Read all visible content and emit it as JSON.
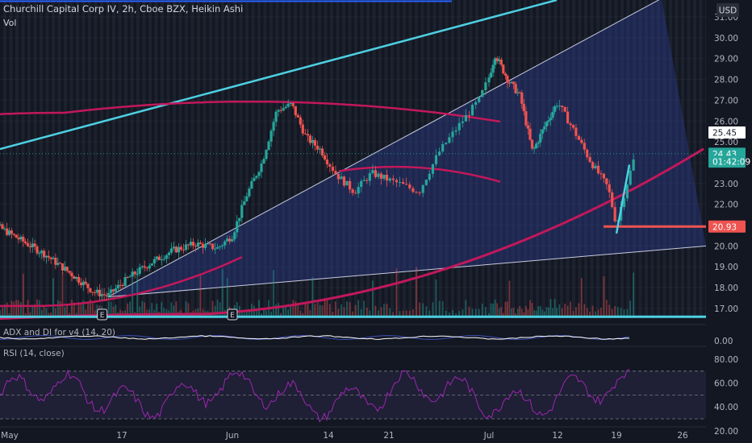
{
  "header": {
    "symbol_line": "Churchill Capital Corp IV, 2h, Cboe BZX, Heikin Ashi",
    "vol_label": "Vol",
    "currency": "USD"
  },
  "price_axis": {
    "ticks": [
      "31.00",
      "30.00",
      "29.00",
      "28.00",
      "27.00",
      "26.00",
      "25.00",
      "24.00",
      "23.00",
      "22.00",
      "21.00",
      "20.00",
      "19.00",
      "18.00",
      "17.00"
    ],
    "badges": [
      {
        "text": "25.45",
        "value": 25.45,
        "style": "white"
      },
      {
        "text": "24.43",
        "value": 24.43,
        "style": "teal"
      },
      {
        "text": "01:42:09",
        "value": 24.05,
        "style": "teal"
      },
      {
        "text": "20.93",
        "value": 20.93,
        "style": "red"
      }
    ]
  },
  "time_axis": {
    "labels": [
      "May",
      "17",
      "Jun",
      "14",
      "21",
      "Jul",
      "12",
      "19",
      "26"
    ]
  },
  "earnings_markers": [
    "E",
    "E"
  ],
  "colors": {
    "background": "#131722",
    "bull": "#26a69a",
    "bear": "#ef5350",
    "teal_line": "#4dd0e1",
    "magenta_line": "#c2185b",
    "channel_fill": "#2a3a85",
    "rsi_line": "#9c27b0",
    "adx_line": "#ffffff"
  },
  "indicators": {
    "adx": {
      "label": "ADX and DI for v4 (14, 20)",
      "ticks": [
        "0.00"
      ]
    },
    "rsi": {
      "label": "RSI (14, close)",
      "ticks": [
        "80.00",
        "60.00",
        "40.00",
        "20.00"
      ]
    }
  },
  "chart_data": {
    "type": "candlestick",
    "title": "Churchill Capital Corp IV, 2h, Cboe BZX, Heikin Ashi",
    "ylim": [
      16.5,
      31.5
    ],
    "x_range": [
      "Apr 26",
      "Jul 26"
    ],
    "price_path": [
      [
        "Apr 26",
        23.0
      ],
      [
        "Apr 29",
        21.0
      ],
      [
        "May 3",
        20.2
      ],
      [
        "May 6",
        19.6
      ],
      [
        "May 10",
        18.6
      ],
      [
        "May 13",
        17.8
      ],
      [
        "May 15",
        17.6
      ],
      [
        "May 18",
        18.5
      ],
      [
        "May 21",
        19.2
      ],
      [
        "May 24",
        19.8
      ],
      [
        "May 27",
        20.1
      ],
      [
        "May 30",
        19.9
      ],
      [
        "Jun 1",
        20.5
      ],
      [
        "Jun 3",
        22.5
      ],
      [
        "Jun 5",
        24.0
      ],
      [
        "Jun 7",
        26.5
      ],
      [
        "Jun 9",
        26.8
      ],
      [
        "Jun 11",
        25.2
      ],
      [
        "Jun 13",
        24.6
      ],
      [
        "Jun 15",
        23.4
      ],
      [
        "Jun 17",
        22.6
      ],
      [
        "Jun 19",
        23.5
      ],
      [
        "Jun 22",
        23.0
      ],
      [
        "Jun 24",
        22.6
      ],
      [
        "Jun 26",
        24.5
      ],
      [
        "Jun 28",
        25.8
      ],
      [
        "Jun 30",
        27.0
      ],
      [
        "Jul 2",
        29.2
      ],
      [
        "Jul 4",
        28.0
      ],
      [
        "Jul 6",
        27.2
      ],
      [
        "Jul 8",
        24.5
      ],
      [
        "Jul 10",
        25.8
      ],
      [
        "Jul 12",
        26.9
      ],
      [
        "Jul 14",
        25.5
      ],
      [
        "Jul 16",
        24.0
      ],
      [
        "Jul 18",
        22.8
      ],
      [
        "Jul 19",
        21.0
      ],
      [
        "Jul 20",
        22.8
      ],
      [
        "Jul 21",
        24.43
      ]
    ],
    "last_price": 24.43,
    "support_level": 20.93,
    "level_25_45": 25.45,
    "base_level": 16.6,
    "rsi_levels": [
      70,
      50,
      30
    ],
    "rsi_ylim": [
      10,
      90
    ]
  }
}
